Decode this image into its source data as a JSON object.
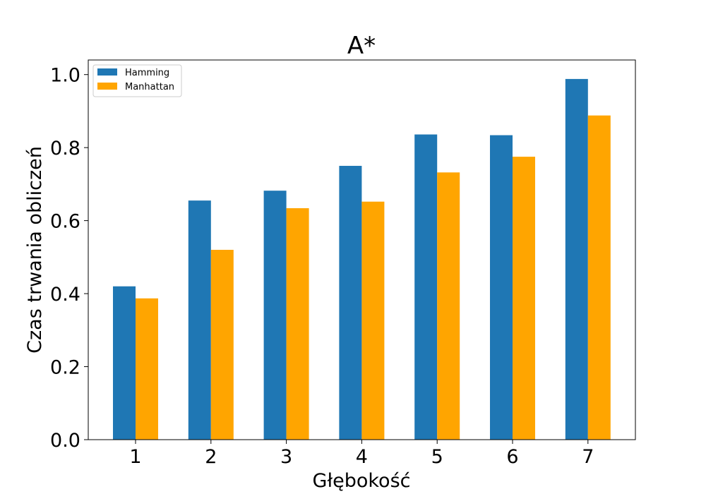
{
  "chart_data": {
    "type": "bar",
    "title": "A*",
    "xlabel": "Głębokość",
    "ylabel": "Czas trwania obliczeń",
    "categories": [
      "1",
      "2",
      "3",
      "4",
      "5",
      "6",
      "7"
    ],
    "series": [
      {
        "name": "Hamming",
        "color": "#1f77b4",
        "values": [
          0.42,
          0.655,
          0.682,
          0.75,
          0.836,
          0.834,
          0.988
        ]
      },
      {
        "name": "Manhattan",
        "color": "#ffa500",
        "values": [
          0.387,
          0.52,
          0.634,
          0.652,
          0.732,
          0.775,
          0.888
        ]
      }
    ],
    "ylim": [
      0,
      1.04
    ],
    "yticks": [
      "0.0",
      "0.2",
      "0.4",
      "0.6",
      "0.8",
      "1.0"
    ],
    "grid": false,
    "legend_position": "top-left"
  }
}
